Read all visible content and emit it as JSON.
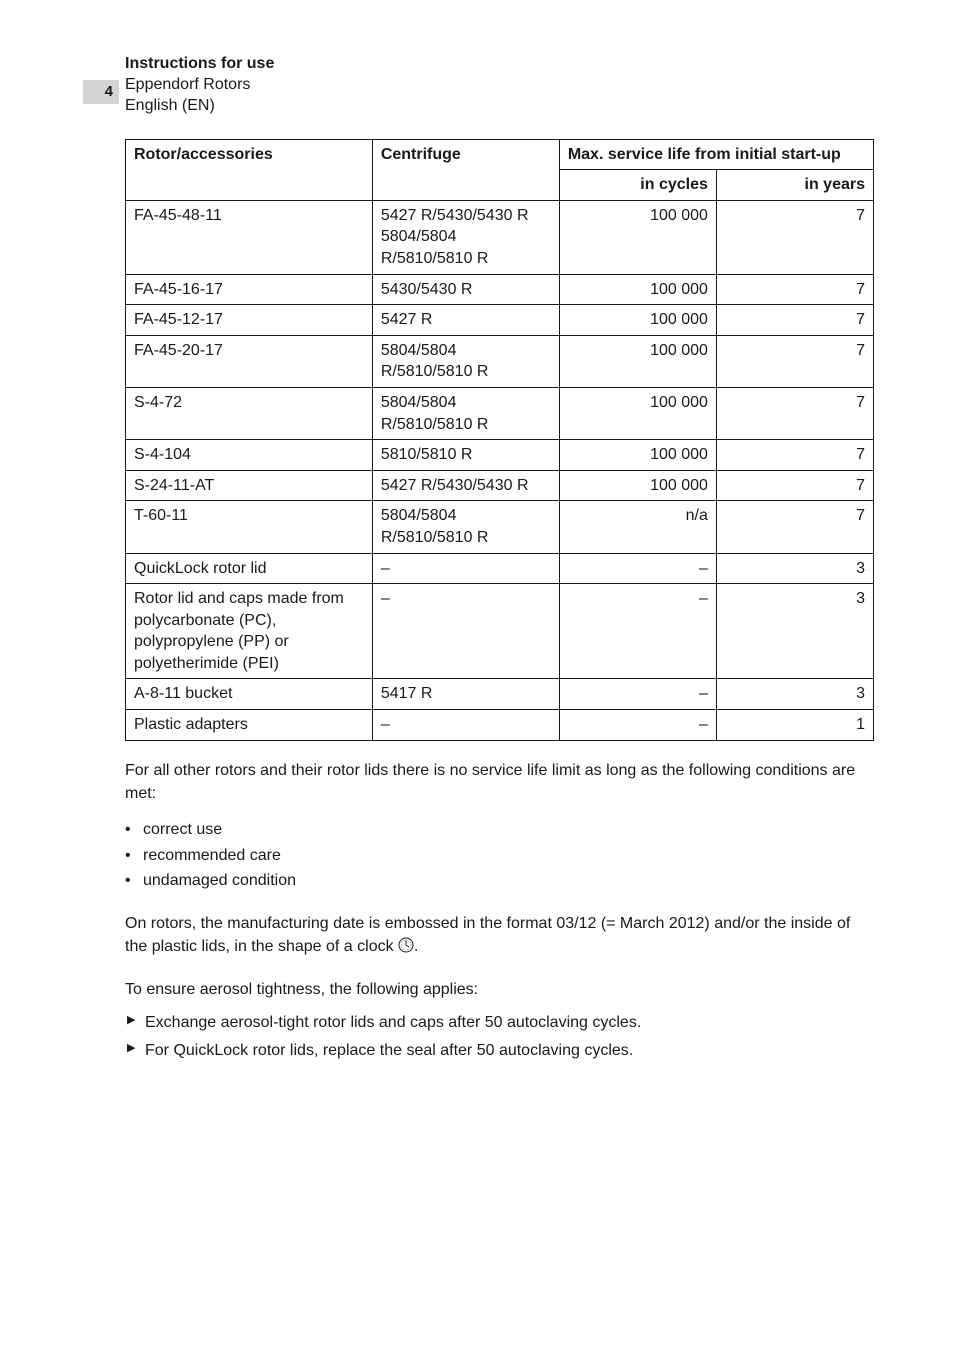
{
  "page_number": "4",
  "header": {
    "title": "Instructions for use",
    "line1": "Eppendorf Rotors",
    "line2": "English (EN)"
  },
  "table": {
    "columns": {
      "rotor": "Rotor/accessories",
      "centrifuge": "Centrifuge",
      "max_span": "Max. service life from initial start-up",
      "in_cycles": "in cycles",
      "in_years": "in years"
    },
    "col_widths": {
      "c1": "33%",
      "c2": "25%",
      "c3": "21%",
      "c4": "21%"
    },
    "rows": [
      {
        "rotor": "FA-45-48-11",
        "centrifuge": "5427 R/5430/5430 R 5804/5804 R/5810/5810 R",
        "cycles": "100 000",
        "years": "7"
      },
      {
        "rotor": "FA-45-16-17",
        "centrifuge": "5430/5430 R",
        "cycles": "100 000",
        "years": "7"
      },
      {
        "rotor": "FA-45-12-17",
        "centrifuge": "5427 R",
        "cycles": "100 000",
        "years": "7"
      },
      {
        "rotor": "FA-45-20-17",
        "centrifuge": "5804/5804 R/5810/5810 R",
        "cycles": "100 000",
        "years": "7"
      },
      {
        "rotor": "S-4-72",
        "centrifuge": "5804/5804 R/5810/5810 R",
        "cycles": "100 000",
        "years": "7"
      },
      {
        "rotor": "S-4-104",
        "centrifuge": "5810/5810 R",
        "cycles": "100 000",
        "years": "7"
      },
      {
        "rotor": "S-24-11-AT",
        "centrifuge": "5427 R/5430/5430 R",
        "cycles": "100 000",
        "years": "7"
      },
      {
        "rotor": "T-60-11",
        "centrifuge": "5804/5804 R/5810/5810 R",
        "cycles": "n/a",
        "years": "7"
      },
      {
        "rotor": "QuickLock rotor lid",
        "centrifuge": "–",
        "cycles": "–",
        "years": "3"
      },
      {
        "rotor": "Rotor lid and caps made from polycarbonate (PC), polypropylene (PP) or polyetherimide (PEI)",
        "centrifuge": "–",
        "cycles": "–",
        "years": "3"
      },
      {
        "rotor": "A-8-11 bucket",
        "centrifuge": "5417 R",
        "cycles": "–",
        "years": "3"
      },
      {
        "rotor": "Plastic adapters",
        "centrifuge": "–",
        "cycles": "–",
        "years": "1"
      }
    ]
  },
  "para1": "For all other rotors and their rotor lids there is no service life limit as long as the following conditions are met:",
  "bullets": [
    "correct use",
    "recommended care",
    "undamaged condition"
  ],
  "para2_a": "On rotors, the manufacturing date is embossed in the format 03/12 (= March 2012) and/or the inside of the plastic lids, in the shape of a clock ",
  "para2_b": ".",
  "para3": "To ensure aerosol tightness, the following applies:",
  "arrows": [
    "Exchange aerosol-tight rotor lids and caps after 50 autoclaving cycles.",
    "For QuickLock rotor lids, replace the seal after 50 autoclaving cycles."
  ],
  "styles": {
    "text_color": "#1a1a1a",
    "border_color": "#1a1a1a",
    "tab_bg": "#d4d4d4",
    "body_fontsize": 16
  }
}
